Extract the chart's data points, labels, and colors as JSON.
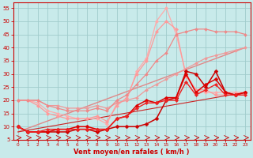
{
  "xlabel": "Vent moyen/en rafales ( km/h )",
  "xlim": [
    -0.5,
    23.5
  ],
  "ylim": [
    5,
    57
  ],
  "yticks": [
    5,
    10,
    15,
    20,
    25,
    30,
    35,
    40,
    45,
    50,
    55
  ],
  "xticks": [
    0,
    1,
    2,
    3,
    4,
    5,
    6,
    7,
    8,
    9,
    10,
    11,
    12,
    13,
    14,
    15,
    16,
    17,
    18,
    19,
    20,
    21,
    22,
    23
  ],
  "bg_color": "#c8eaea",
  "grid_color": "#a0cccc",
  "lines": [
    {
      "x": [
        0,
        23
      ],
      "y": [
        8,
        40
      ],
      "color": "#e08888",
      "lw": 1.0,
      "marker": null,
      "ms": 0
    },
    {
      "x": [
        0,
        1,
        2,
        3,
        4,
        5,
        6,
        7,
        8,
        9,
        10,
        11,
        12,
        13,
        14,
        15,
        16,
        17,
        18,
        19,
        20,
        21,
        22,
        23
      ],
      "y": [
        20,
        20,
        19,
        16,
        15,
        14,
        13,
        13,
        13,
        11,
        19,
        20,
        31,
        36,
        50,
        55,
        45,
        30,
        24,
        23,
        23,
        23,
        23,
        23
      ],
      "color": "#ffaaaa",
      "lw": 0.9,
      "marker": "D",
      "ms": 2.2
    },
    {
      "x": [
        0,
        1,
        2,
        3,
        4,
        5,
        6,
        7,
        8,
        9,
        10,
        11,
        12,
        13,
        14,
        15,
        16,
        17,
        18,
        19,
        20,
        21,
        22,
        23
      ],
      "y": [
        20,
        20,
        18,
        15,
        14,
        13,
        13,
        13,
        14,
        12,
        18,
        21,
        30,
        35,
        46,
        50,
        47,
        29,
        24,
        24,
        22,
        22,
        22,
        22
      ],
      "color": "#ff9999",
      "lw": 0.9,
      "marker": "D",
      "ms": 2.2
    },
    {
      "x": [
        0,
        1,
        2,
        3,
        4,
        5,
        6,
        7,
        8,
        9,
        10,
        11,
        12,
        13,
        14,
        15,
        16,
        17,
        18,
        19,
        20,
        21,
        22,
        23
      ],
      "y": [
        20,
        20,
        20,
        18,
        18,
        17,
        17,
        17,
        18,
        17,
        19,
        20,
        21,
        24,
        26,
        28,
        30,
        32,
        34,
        36,
        37,
        38,
        39,
        40
      ],
      "color": "#ee9999",
      "lw": 0.9,
      "marker": "D",
      "ms": 2.0
    },
    {
      "x": [
        0,
        1,
        2,
        3,
        4,
        5,
        6,
        7,
        8,
        9,
        10,
        11,
        12,
        13,
        14,
        15,
        16,
        17,
        18,
        19,
        20,
        21,
        22,
        23
      ],
      "y": [
        20,
        20,
        20,
        18,
        17,
        16,
        16,
        16,
        17,
        16,
        20,
        22,
        26,
        30,
        35,
        38,
        45,
        46,
        47,
        47,
        46,
        46,
        46,
        45
      ],
      "color": "#ee8888",
      "lw": 0.9,
      "marker": "D",
      "ms": 2.0
    },
    {
      "x": [
        0,
        1,
        2,
        3,
        4,
        5,
        6,
        7,
        8,
        9,
        10,
        11,
        12,
        13,
        14,
        15,
        16,
        17,
        18,
        19,
        20,
        21,
        22,
        23
      ],
      "y": [
        10,
        8,
        8,
        8,
        8,
        8,
        9,
        9,
        8,
        9,
        10,
        10,
        10,
        11,
        13,
        20,
        21,
        31,
        30,
        25,
        31,
        23,
        22,
        23
      ],
      "color": "#cc0000",
      "lw": 1.1,
      "marker": "D",
      "ms": 2.5
    },
    {
      "x": [
        0,
        1,
        2,
        3,
        4,
        5,
        6,
        7,
        8,
        9,
        10,
        11,
        12,
        13,
        14,
        15,
        16,
        17,
        18,
        19,
        20,
        21,
        22,
        23
      ],
      "y": [
        10,
        8,
        8,
        8,
        9,
        9,
        10,
        10,
        9,
        9,
        13,
        14,
        18,
        20,
        19,
        21,
        21,
        30,
        23,
        26,
        28,
        23,
        22,
        23
      ],
      "color": "#dd0000",
      "lw": 1.1,
      "marker": "D",
      "ms": 2.5
    },
    {
      "x": [
        0,
        1,
        2,
        3,
        4,
        5,
        6,
        7,
        8,
        9,
        10,
        11,
        12,
        13,
        14,
        15,
        16,
        17,
        18,
        19,
        20,
        21,
        22,
        23
      ],
      "y": [
        10,
        8,
        8,
        9,
        9,
        9,
        9,
        9,
        9,
        9,
        13,
        14,
        17,
        19,
        19,
        20,
        20,
        27,
        22,
        24,
        26,
        22,
        22,
        22
      ],
      "color": "#ee2222",
      "lw": 1.0,
      "marker": "D",
      "ms": 2.2
    },
    {
      "x": [
        0,
        23
      ],
      "y": [
        8,
        23
      ],
      "color": "#cc2222",
      "lw": 0.8,
      "marker": null,
      "ms": 0
    }
  ],
  "arrow_color": "#cc0000",
  "axis_color": "#cc0000",
  "tick_color": "#cc0000",
  "label_color": "#cc0000"
}
